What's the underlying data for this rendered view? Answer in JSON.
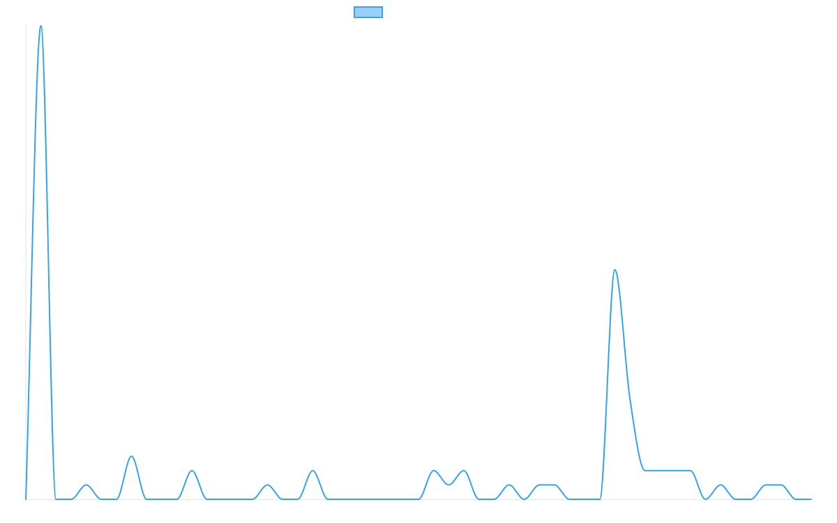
{
  "chart_data": {
    "type": "line",
    "title": "",
    "xlabel": "",
    "ylabel": "",
    "legend": {
      "position": "top-center",
      "entries": [
        {
          "label": "",
          "color": "#36a2eb",
          "fill": "#9ad0f5"
        }
      ]
    },
    "grid": false,
    "smooth": true,
    "x": [
      0,
      1,
      2,
      3,
      4,
      5,
      6,
      7,
      8,
      9,
      10,
      11,
      12,
      13,
      14,
      15,
      16,
      17,
      18,
      19,
      20,
      21,
      22,
      23,
      24,
      25,
      26,
      27,
      28,
      29,
      30,
      31,
      32,
      33,
      34,
      35,
      36,
      37,
      38,
      39,
      40,
      41,
      42,
      43,
      44,
      45,
      46,
      47,
      48,
      49,
      50,
      51,
      52
    ],
    "xlim": [
      0,
      52
    ],
    "ylim": [
      0,
      33
    ],
    "series": [
      {
        "name": "",
        "color": "#36a2eb",
        "values": [
          0,
          33,
          0,
          0,
          1,
          0,
          0,
          3,
          0,
          0,
          0,
          2,
          0,
          0,
          0,
          0,
          1,
          0,
          0,
          2,
          0,
          0,
          0,
          0,
          0,
          0,
          0,
          2,
          1,
          2,
          0,
          0,
          1,
          0,
          1,
          1,
          0,
          0,
          0,
          16,
          7,
          2,
          2,
          2,
          2,
          0,
          1,
          0,
          0,
          1,
          1,
          0,
          0
        ]
      }
    ]
  }
}
